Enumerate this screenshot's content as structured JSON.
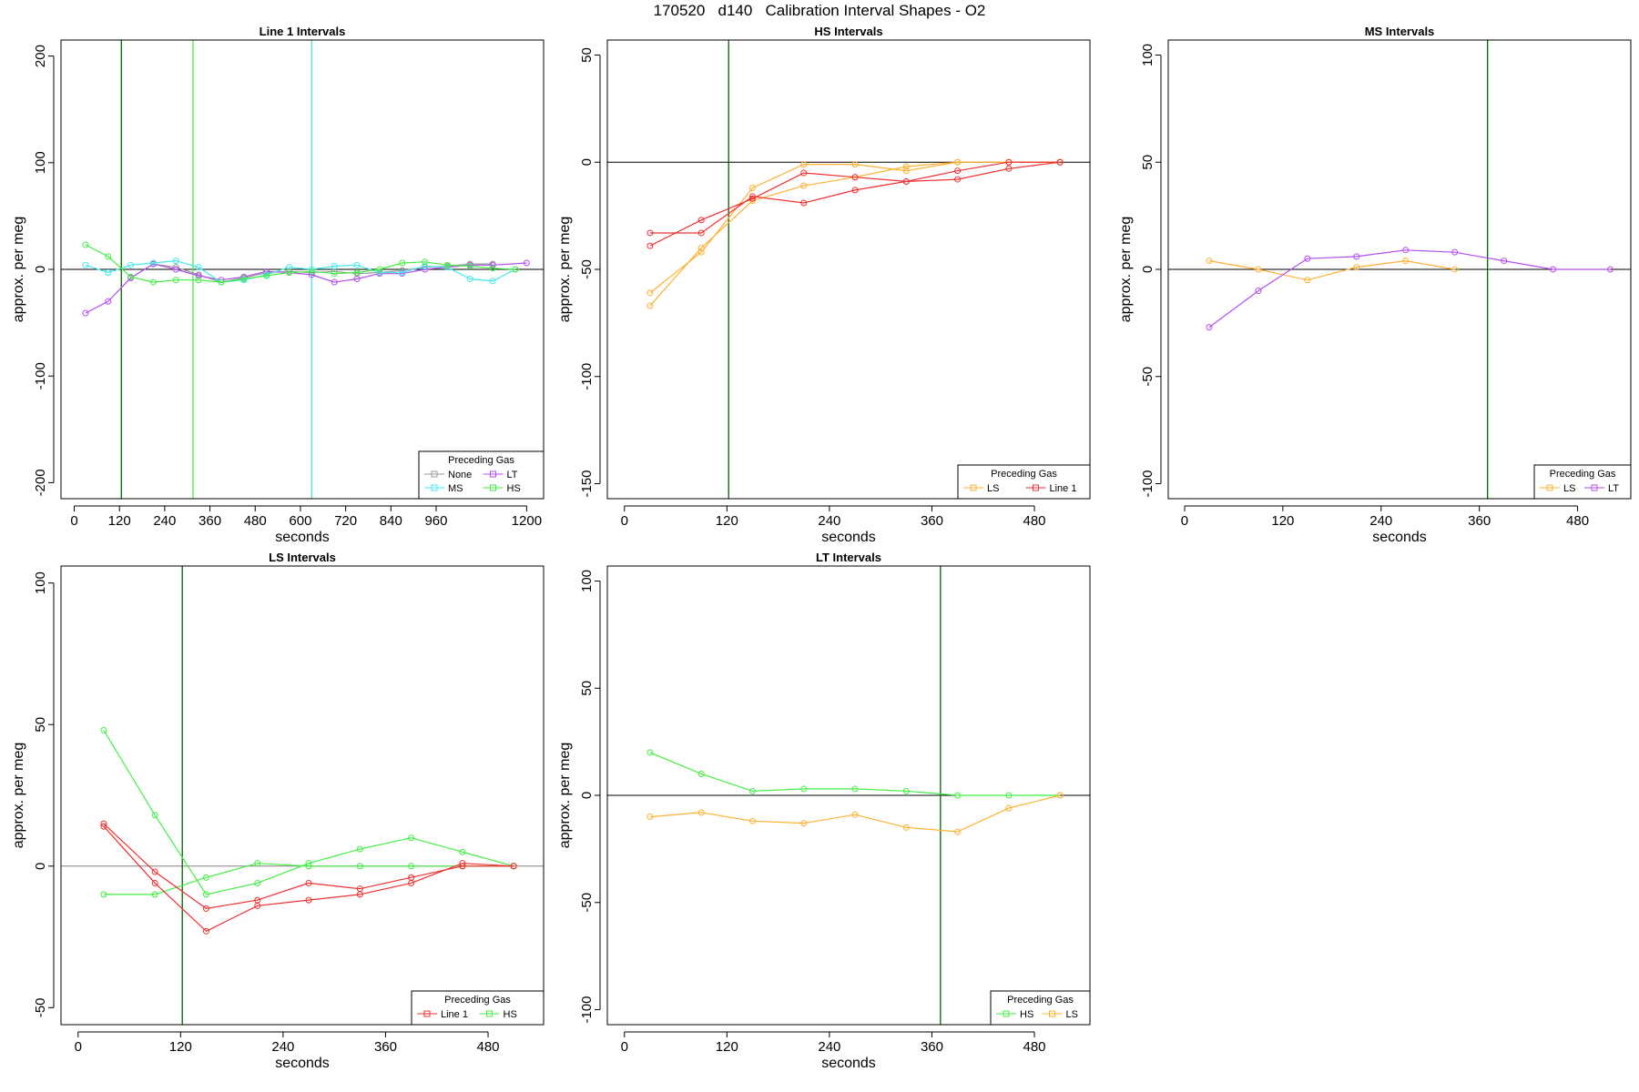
{
  "page": {
    "title": "170520   d140   Calibration Interval Shapes - O2"
  },
  "colors": {
    "None": "#999999",
    "LT": "#b44ff0",
    "MS": "#44e8e8",
    "HS": "#44ee44",
    "LS": "#ffb030",
    "Line 1": "#f03030",
    "darkgreen": "#006400"
  },
  "chart_data": [
    {
      "type": "line",
      "title": "Line 1 Intervals",
      "xlabel": "seconds",
      "ylabel": "approx. per meg",
      "xlim": [
        -35,
        1245
      ],
      "ylim": [
        -215,
        215
      ],
      "xticks": [
        0,
        120,
        240,
        360,
        480,
        600,
        720,
        840,
        960,
        1200
      ],
      "yticks": [
        -200,
        -100,
        0,
        100,
        200
      ],
      "hlines": [
        {
          "y": 0,
          "color": "#000000"
        }
      ],
      "vlines": [
        {
          "x": 125,
          "color": "#006400"
        },
        {
          "x": 315,
          "color": "#44ee44"
        },
        {
          "x": 630,
          "color": "#44e8e8"
        }
      ],
      "legend": {
        "title": "Preceding Gas",
        "position": "bottom-right",
        "columns": 2,
        "entries": [
          "None",
          "LT",
          "MS",
          "HS"
        ]
      },
      "series": [
        {
          "name": "None",
          "color": "#999999",
          "x": [
            150,
            210,
            270,
            330,
            390,
            450,
            510,
            570,
            630,
            690,
            750,
            810,
            870,
            930,
            990,
            1050,
            1110
          ],
          "y": [
            -8,
            5,
            2,
            -5,
            -12,
            -8,
            -3,
            -2,
            -3,
            -2,
            -4,
            -3,
            -1,
            2,
            3,
            5,
            5
          ]
        },
        {
          "name": "LT",
          "color": "#b44ff0",
          "x": [
            30,
            90,
            150,
            210,
            270,
            330,
            390,
            450,
            510,
            570,
            630,
            690,
            750,
            810,
            870,
            930,
            990,
            1050,
            1110,
            1200
          ],
          "y": [
            -41,
            -30,
            -8,
            5,
            0,
            -6,
            -10,
            -7,
            -2,
            -3,
            -5,
            -12,
            -9,
            -4,
            -4,
            0,
            2,
            4,
            4,
            6
          ]
        },
        {
          "name": "MS",
          "color": "#44e8e8",
          "x": [
            30,
            90,
            150,
            210,
            270,
            330,
            390,
            450,
            510,
            570,
            630,
            690,
            750,
            810,
            870,
            930,
            990,
            1050,
            1110,
            1170
          ],
          "y": [
            4,
            -3,
            4,
            6,
            8,
            2,
            -12,
            -10,
            -5,
            2,
            0,
            3,
            4,
            -3,
            -3,
            3,
            2,
            -9,
            -11,
            0
          ]
        },
        {
          "name": "HS",
          "color": "#44ee44",
          "x": [
            30,
            90,
            150,
            210,
            270,
            330,
            390,
            450,
            510,
            570,
            630,
            690,
            750,
            810,
            870,
            930,
            990,
            1050,
            1110,
            1170
          ],
          "y": [
            23,
            12,
            -7,
            -12,
            -10,
            -10,
            -12,
            -9,
            -6,
            -3,
            -2,
            -4,
            -3,
            0,
            6,
            7,
            4,
            3,
            1,
            0
          ]
        }
      ]
    },
    {
      "type": "line",
      "title": "HS Intervals",
      "xlabel": "seconds",
      "ylabel": "approx. per meg",
      "xlim": [
        -20,
        545
      ],
      "ylim": [
        -157,
        57
      ],
      "xticks": [
        0,
        120,
        240,
        360,
        480
      ],
      "yticks": [
        -150,
        -100,
        -50,
        0,
        50
      ],
      "hlines": [
        {
          "y": 0,
          "color": "#000000"
        }
      ],
      "vlines": [
        {
          "x": 122,
          "color": "#006400"
        }
      ],
      "legend": {
        "title": "Preceding Gas",
        "position": "bottom-right",
        "columns": 2,
        "entries": [
          "LS",
          "Line 1"
        ]
      },
      "series": [
        {
          "name": "LS",
          "color": "#ffb030",
          "x": [
            30,
            90,
            150,
            210,
            270,
            330,
            390,
            450,
            510
          ],
          "y": [
            -61,
            -42,
            -12,
            -1,
            -1,
            -4,
            0,
            0,
            0
          ]
        },
        {
          "name": "LS",
          "color": "#ffb030",
          "x": [
            30,
            90,
            150,
            210,
            270,
            330,
            390,
            450,
            510
          ],
          "y": [
            -67,
            -40,
            -18,
            -11,
            -7,
            -2,
            0,
            0,
            0
          ]
        },
        {
          "name": "Line 1",
          "color": "#f03030",
          "x": [
            30,
            90,
            150,
            210,
            270,
            330,
            390,
            450,
            510
          ],
          "y": [
            -39,
            -27,
            -17,
            -5,
            -7,
            -9,
            -8,
            -3,
            0
          ]
        },
        {
          "name": "Line 1",
          "color": "#f03030",
          "x": [
            30,
            90,
            150,
            210,
            270,
            330,
            390,
            450,
            510
          ],
          "y": [
            -33,
            -33,
            -16,
            -19,
            -13,
            -9,
            -4,
            0,
            0
          ]
        }
      ]
    },
    {
      "type": "line",
      "title": "MS Intervals",
      "xlabel": "seconds",
      "ylabel": "approx. per meg",
      "xlim": [
        -20,
        545
      ],
      "ylim": [
        -107,
        107
      ],
      "xticks": [
        0,
        120,
        240,
        360,
        480
      ],
      "yticks": [
        -100,
        -50,
        0,
        50,
        100
      ],
      "hlines": [
        {
          "y": 0,
          "color": "#000000"
        }
      ],
      "vlines": [
        {
          "x": 370,
          "color": "#006400"
        }
      ],
      "legend": {
        "title": "Preceding Gas",
        "position": "bottom-right",
        "columns": 2,
        "entries": [
          "LS",
          "LT"
        ]
      },
      "series": [
        {
          "name": "LS",
          "color": "#ffb030",
          "x": [
            30,
            90,
            150,
            210,
            270,
            330
          ],
          "y": [
            4,
            0,
            -5,
            1,
            4,
            0
          ]
        },
        {
          "name": "LT",
          "color": "#b44ff0",
          "x": [
            30,
            90,
            150,
            210,
            270,
            330,
            390,
            450,
            520
          ],
          "y": [
            -27,
            -10,
            5,
            6,
            9,
            8,
            4,
            0,
            0
          ]
        }
      ]
    },
    {
      "type": "line",
      "title": "LS Intervals",
      "xlabel": "seconds",
      "ylabel": "approx. per meg",
      "xlim": [
        -20,
        545
      ],
      "ylim": [
        -56,
        106
      ],
      "xticks": [
        0,
        120,
        240,
        360,
        480
      ],
      "yticks": [
        -50,
        0,
        50,
        100
      ],
      "hlines": [
        {
          "y": 0,
          "color": "#808080"
        }
      ],
      "vlines": [
        {
          "x": 122,
          "color": "#006400"
        }
      ],
      "legend": {
        "title": "Preceding Gas",
        "position": "bottom-right",
        "columns": 2,
        "entries": [
          "Line 1",
          "HS"
        ]
      },
      "series": [
        {
          "name": "HS",
          "color": "#44ee44",
          "x": [
            30,
            90,
            150,
            210,
            270,
            330,
            390,
            450,
            510
          ],
          "y": [
            48,
            18,
            -10,
            -6,
            1,
            6,
            10,
            5,
            0
          ]
        },
        {
          "name": "HS",
          "color": "#44ee44",
          "x": [
            30,
            90,
            150,
            210,
            270,
            330,
            390,
            450,
            510
          ],
          "y": [
            -10,
            -10,
            -4,
            1,
            0,
            0,
            0,
            0,
            0
          ]
        },
        {
          "name": "Line 1",
          "color": "#f03030",
          "x": [
            30,
            90,
            150,
            210,
            270,
            330,
            390,
            450,
            510
          ],
          "y": [
            15,
            -2,
            -15,
            -12,
            -6,
            -8,
            -4,
            0,
            0
          ]
        },
        {
          "name": "Line 1",
          "color": "#f03030",
          "x": [
            30,
            90,
            150,
            210,
            270,
            330,
            390,
            450,
            510
          ],
          "y": [
            14,
            -6,
            -23,
            -14,
            -12,
            -10,
            -6,
            1,
            0
          ]
        }
      ]
    },
    {
      "type": "line",
      "title": "LT Intervals",
      "xlabel": "seconds",
      "ylabel": "approx. per meg",
      "xlim": [
        -20,
        545
      ],
      "ylim": [
        -107,
        107
      ],
      "xticks": [
        0,
        120,
        240,
        360,
        480
      ],
      "yticks": [
        -100,
        -50,
        0,
        50,
        100
      ],
      "hlines": [
        {
          "y": 0,
          "color": "#000000"
        }
      ],
      "vlines": [
        {
          "x": 370,
          "color": "#006400"
        }
      ],
      "legend": {
        "title": "Preceding Gas",
        "position": "bottom-right",
        "columns": 2,
        "entries": [
          "HS",
          "LS"
        ]
      },
      "series": [
        {
          "name": "HS",
          "color": "#44ee44",
          "x": [
            30,
            90,
            150,
            210,
            270,
            330,
            390,
            450,
            510
          ],
          "y": [
            20,
            10,
            2,
            3,
            3,
            2,
            0,
            0,
            0
          ]
        },
        {
          "name": "LS",
          "color": "#ffb030",
          "x": [
            30,
            90,
            150,
            210,
            270,
            330,
            390,
            450,
            510
          ],
          "y": [
            -10,
            -8,
            -12,
            -13,
            -9,
            -15,
            -17,
            -6,
            0
          ]
        }
      ]
    }
  ]
}
